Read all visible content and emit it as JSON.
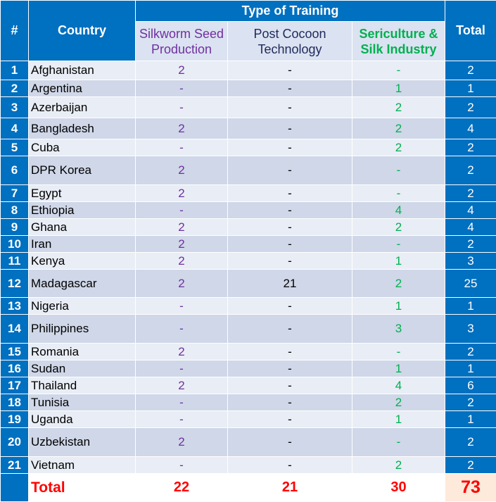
{
  "header": {
    "hash": "#",
    "country": "Country",
    "type_of_training": "Type of Training",
    "total": "Total",
    "col_silkworm": [
      "Silkworm Seed",
      "Production"
    ],
    "col_postcocoon": [
      "Post Cocoon",
      "Technology"
    ],
    "col_sericulture": [
      "Sericulture &",
      "Silk Industry"
    ]
  },
  "rows": [
    {
      "n": "1",
      "country": "Afghanistan",
      "silkworm": "2",
      "postcocoon": "-",
      "sericulture": "-",
      "total": "2"
    },
    {
      "n": "2",
      "country": "Argentina",
      "silkworm": "-",
      "postcocoon": "-",
      "sericulture": "1",
      "total": "1"
    },
    {
      "n": "3",
      "country": "Azerbaijan",
      "silkworm": "-",
      "postcocoon": "-",
      "sericulture": "2",
      "total": "2"
    },
    {
      "n": "4",
      "country": "Bangladesh",
      "silkworm": "2",
      "postcocoon": "-",
      "sericulture": "2",
      "total": "4"
    },
    {
      "n": "5",
      "country": "Cuba",
      "silkworm": "-",
      "postcocoon": "-",
      "sericulture": "2",
      "total": "2"
    },
    {
      "n": "6",
      "country": "DPR Korea",
      "silkworm": "2",
      "postcocoon": "-",
      "sericulture": "-",
      "total": "2"
    },
    {
      "n": "7",
      "country": "Egypt",
      "silkworm": "2",
      "postcocoon": "-",
      "sericulture": "-",
      "total": "2"
    },
    {
      "n": "8",
      "country": "Ethiopia",
      "silkworm": "-",
      "postcocoon": "-",
      "sericulture": "4",
      "total": "4"
    },
    {
      "n": "9",
      "country": "Ghana",
      "silkworm": "2",
      "postcocoon": "-",
      "sericulture": "2",
      "total": "4"
    },
    {
      "n": "10",
      "country": "Iran",
      "silkworm": "2",
      "postcocoon": "-",
      "sericulture": "-",
      "total": "2"
    },
    {
      "n": "11",
      "country": "Kenya",
      "silkworm": "2",
      "postcocoon": "-",
      "sericulture": "1",
      "total": "3"
    },
    {
      "n": "12",
      "country": "Madagascar",
      "silkworm": "2",
      "postcocoon": "21",
      "sericulture": "2",
      "total": "25"
    },
    {
      "n": "13",
      "country": "Nigeria",
      "silkworm": "-",
      "postcocoon": "-",
      "sericulture": "1",
      "total": "1"
    },
    {
      "n": "14",
      "country": "Philippines",
      "silkworm": "-",
      "postcocoon": "-",
      "sericulture": "3",
      "total": "3"
    },
    {
      "n": "15",
      "country": "Romania",
      "silkworm": "2",
      "postcocoon": "-",
      "sericulture": "-",
      "total": "2"
    },
    {
      "n": "16",
      "country": "Sudan",
      "silkworm": "-",
      "postcocoon": "-",
      "sericulture": "1",
      "total": "1"
    },
    {
      "n": "17",
      "country": "Thailand",
      "silkworm": "2",
      "postcocoon": "-",
      "sericulture": "4",
      "total": "6"
    },
    {
      "n": "18",
      "country": "Tunisia",
      "silkworm": "-",
      "postcocoon": "-",
      "sericulture": "2",
      "total": "2"
    },
    {
      "n": "19",
      "country": "Uganda",
      "silkworm": "-",
      "postcocoon": "-",
      "sericulture": "1",
      "total": "1"
    },
    {
      "n": "20",
      "country": "Uzbekistan",
      "silkworm": "2",
      "postcocoon": "-",
      "sericulture": "-",
      "total": "2"
    },
    {
      "n": "21",
      "country": "Vietnam",
      "silkworm": "-",
      "postcocoon": "-",
      "sericulture": "2",
      "total": "2"
    }
  ],
  "footer": {
    "label": "Total",
    "silkworm": "22",
    "postcocoon": "21",
    "sericulture": "30",
    "grand_total": "73"
  },
  "colors": {
    "header_blue": "#0070c0",
    "silkworm": "#7030a0",
    "sericulture": "#00b050",
    "total_red": "#ff0000"
  }
}
